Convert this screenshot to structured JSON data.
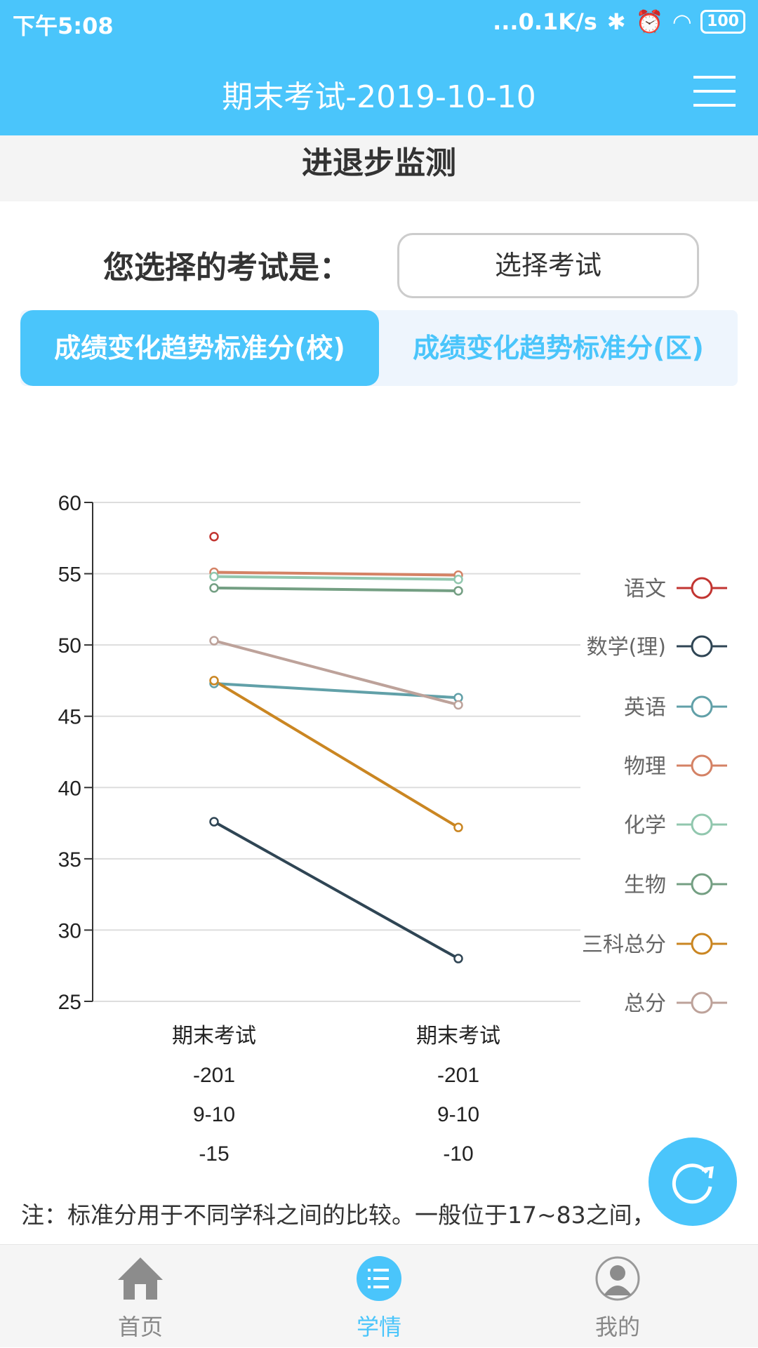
{
  "status_bar": {
    "time": "下午5:08",
    "network_speed": "...0.1K/s",
    "battery": "100"
  },
  "header": {
    "title": "期末考试-2019-10-10",
    "menu_icon": "hamburger-menu-icon"
  },
  "section_title": "进退步监测",
  "exam_picker": {
    "label": "您选择的考试是：",
    "button": "选择考试"
  },
  "tabs": [
    {
      "label": "成绩变化趋势标准分(校)",
      "active": true
    },
    {
      "label": "成绩变化趋势标准分(区)",
      "active": false
    }
  ],
  "chart_data": {
    "type": "line",
    "categories": [
      "期末考试-2019-10-15",
      "期末考试-2019-10-10"
    ],
    "category_label_lines": [
      [
        "期末考试",
        "-201",
        "9-10",
        "-15"
      ],
      [
        "期末考试",
        "-201",
        "9-10",
        "-10"
      ]
    ],
    "ylim": [
      25,
      60
    ],
    "yticks": [
      60,
      55,
      50,
      45,
      40,
      35,
      30,
      25
    ],
    "grid": true,
    "legend_position": "right",
    "series": [
      {
        "name": "语文",
        "color": "#c23531",
        "values": [
          57.6,
          null
        ]
      },
      {
        "name": "数学(理)",
        "color": "#2f4554",
        "values": [
          37.6,
          28.0
        ]
      },
      {
        "name": "英语",
        "color": "#61a0a8",
        "values": [
          47.3,
          46.3
        ]
      },
      {
        "name": "物理",
        "color": "#d48265",
        "values": [
          55.1,
          54.9
        ]
      },
      {
        "name": "化学",
        "color": "#91c7ae",
        "values": [
          54.8,
          54.6
        ]
      },
      {
        "name": "生物",
        "color": "#749f83",
        "values": [
          54.0,
          53.8
        ]
      },
      {
        "name": "三科总分",
        "color": "#ca8622",
        "values": [
          47.5,
          37.2
        ]
      },
      {
        "name": "总分",
        "color": "#bda29a",
        "values": [
          50.3,
          45.8
        ]
      }
    ]
  },
  "note": "注：标准分用于不同学科之间的比较。一般位于17~83之间，",
  "fab": {
    "icon": "refresh-icon"
  },
  "bottom_nav": [
    {
      "label": "首页",
      "icon": "home-icon"
    },
    {
      "label": "学情",
      "icon": "list-icon",
      "active": true
    },
    {
      "label": "我的",
      "icon": "profile-icon"
    }
  ],
  "accent_color": "#4ac5fb"
}
